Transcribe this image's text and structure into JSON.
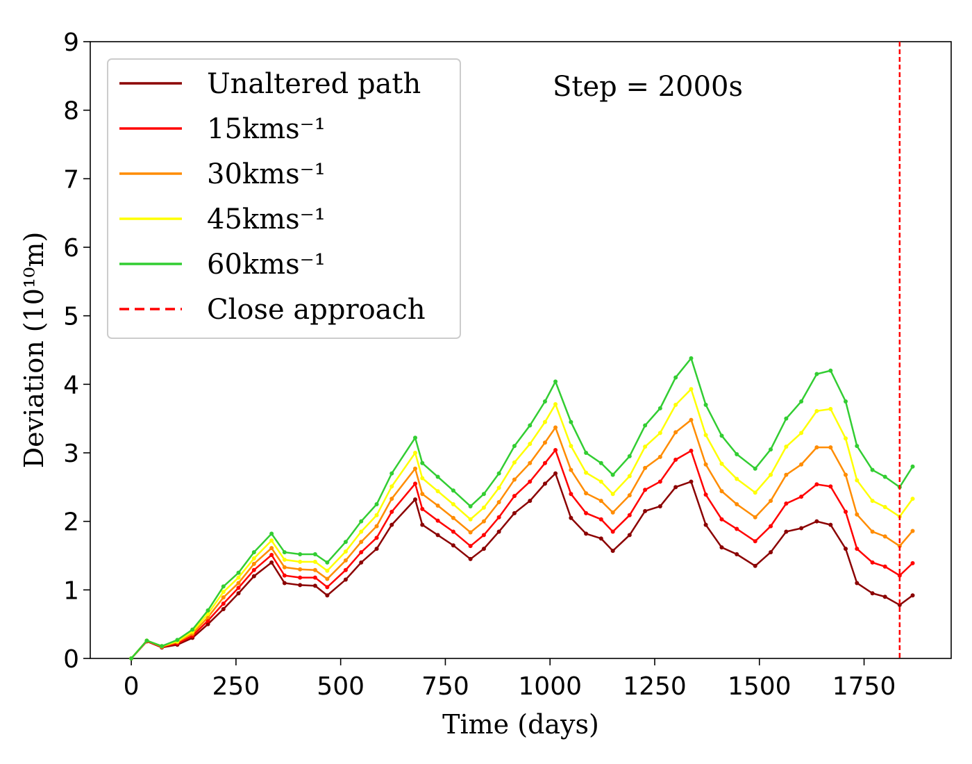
{
  "chart_data": {
    "type": "line",
    "xlabel": "Time (days)",
    "ylabel": "Deviation (10¹⁰m)",
    "annotation": "Step = 2000s",
    "x": [
      0,
      37,
      73,
      110,
      146,
      183,
      220,
      256,
      293,
      335,
      366,
      403,
      439,
      468,
      512,
      549,
      586,
      622,
      678,
      695,
      732,
      769,
      810,
      842,
      878,
      915,
      952,
      988,
      1013,
      1050,
      1086,
      1122,
      1150,
      1190,
      1227,
      1263,
      1300,
      1337,
      1372,
      1410,
      1446,
      1490,
      1527,
      1564,
      1600,
      1637,
      1670,
      1706,
      1733,
      1770,
      1800,
      1835,
      1866
    ],
    "series": [
      {
        "name": "Unaltered path",
        "color": "#8b0000",
        "values": [
          0,
          0.25,
          0.16,
          0.2,
          0.3,
          0.5,
          0.72,
          0.95,
          1.2,
          1.4,
          1.1,
          1.07,
          1.06,
          0.92,
          1.15,
          1.4,
          1.6,
          1.95,
          2.32,
          1.95,
          1.8,
          1.65,
          1.45,
          1.6,
          1.85,
          2.12,
          2.3,
          2.55,
          2.7,
          2.05,
          1.82,
          1.75,
          1.57,
          1.8,
          2.15,
          2.22,
          2.5,
          2.58,
          1.95,
          1.62,
          1.52,
          1.35,
          1.55,
          1.85,
          1.9,
          2.0,
          1.95,
          1.6,
          1.1,
          0.95,
          0.9,
          0.78,
          0.92
        ]
      },
      {
        "name": "15kms⁻¹",
        "color": "#ff0000",
        "values": [
          0,
          0.25,
          0.17,
          0.22,
          0.33,
          0.55,
          0.8,
          1.03,
          1.29,
          1.51,
          1.21,
          1.18,
          1.18,
          1.04,
          1.29,
          1.55,
          1.76,
          2.14,
          2.55,
          2.18,
          2.01,
          1.85,
          1.64,
          1.8,
          2.06,
          2.37,
          2.58,
          2.85,
          3.04,
          2.4,
          2.12,
          2.03,
          1.85,
          2.09,
          2.46,
          2.58,
          2.9,
          3.03,
          2.39,
          2.03,
          1.89,
          1.71,
          1.93,
          2.26,
          2.36,
          2.54,
          2.51,
          2.14,
          1.6,
          1.4,
          1.34,
          1.21,
          1.39
        ]
      },
      {
        "name": "30kms⁻¹",
        "color": "#ff8c00",
        "values": [
          0,
          0.26,
          0.17,
          0.24,
          0.36,
          0.6,
          0.89,
          1.1,
          1.38,
          1.61,
          1.33,
          1.3,
          1.29,
          1.16,
          1.43,
          1.7,
          1.93,
          2.33,
          2.77,
          2.4,
          2.23,
          2.05,
          1.84,
          2.0,
          2.28,
          2.61,
          2.85,
          3.15,
          3.37,
          2.75,
          2.41,
          2.3,
          2.13,
          2.38,
          2.78,
          2.94,
          3.3,
          3.48,
          2.83,
          2.44,
          2.25,
          2.06,
          2.3,
          2.68,
          2.83,
          3.08,
          3.08,
          2.68,
          2.1,
          1.85,
          1.78,
          1.64,
          1.86
        ]
      },
      {
        "name": "45kms⁻¹",
        "color": "#ffff00",
        "values": [
          0,
          0.26,
          0.18,
          0.25,
          0.39,
          0.65,
          0.97,
          1.18,
          1.46,
          1.72,
          1.44,
          1.41,
          1.41,
          1.28,
          1.56,
          1.85,
          2.09,
          2.51,
          3.0,
          2.63,
          2.44,
          2.25,
          2.03,
          2.2,
          2.49,
          2.86,
          3.13,
          3.45,
          3.71,
          3.1,
          2.71,
          2.58,
          2.4,
          2.66,
          3.09,
          3.29,
          3.7,
          3.93,
          3.26,
          2.84,
          2.62,
          2.42,
          2.68,
          3.09,
          3.29,
          3.61,
          3.64,
          3.21,
          2.6,
          2.3,
          2.21,
          2.07,
          2.33
        ]
      },
      {
        "name": "60kms⁻¹",
        "color": "#32cd32",
        "values": [
          0,
          0.26,
          0.18,
          0.27,
          0.42,
          0.7,
          1.05,
          1.25,
          1.55,
          1.82,
          1.55,
          1.52,
          1.52,
          1.4,
          1.7,
          2.0,
          2.25,
          2.7,
          3.22,
          2.85,
          2.65,
          2.45,
          2.22,
          2.4,
          2.7,
          3.1,
          3.4,
          3.75,
          4.04,
          3.45,
          3.0,
          2.85,
          2.68,
          2.95,
          3.4,
          3.65,
          4.1,
          4.38,
          3.7,
          3.25,
          2.98,
          2.77,
          3.05,
          3.5,
          3.75,
          4.15,
          4.2,
          3.75,
          3.1,
          2.75,
          2.65,
          2.5,
          2.8
        ]
      }
    ],
    "vline": {
      "name": "Close approach",
      "x": 1835,
      "color": "#ff0000"
    },
    "xlim": [
      -98,
      1958
    ],
    "ylim": [
      0,
      9
    ],
    "xticks": [
      0,
      250,
      500,
      750,
      1000,
      1250,
      1500,
      1750
    ],
    "yticks": [
      0,
      1,
      2,
      3,
      4,
      5,
      6,
      7,
      8,
      9
    ],
    "legend": "upper left"
  }
}
